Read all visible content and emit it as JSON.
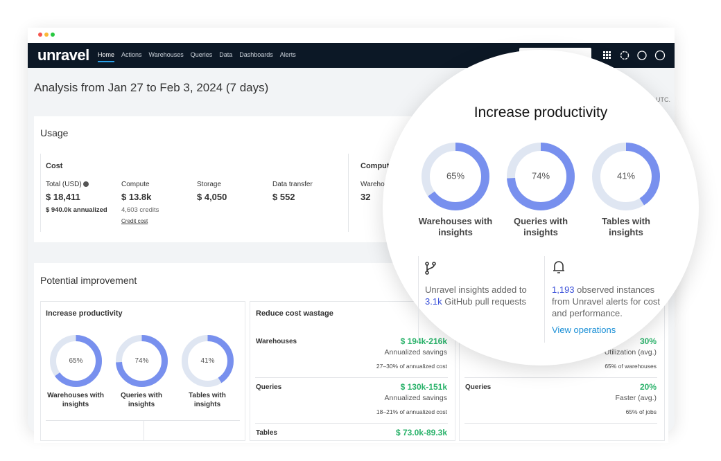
{
  "nav": {
    "logo": "unravel",
    "items": [
      "Home",
      "Actions",
      "Warehouses",
      "Queries",
      "Data",
      "Dashboards",
      "Alerts"
    ]
  },
  "header": {
    "title": "Analysis from Jan 27 to Feb 3, 2024 (7 days)",
    "timezone": "UTC."
  },
  "usage": {
    "title": "Usage",
    "cost": {
      "title": "Cost",
      "total_label": "Total (USD)",
      "total": "$ 18,411",
      "annualized": "$ 940.0k annualized",
      "compute_label": "Compute",
      "compute": "$ 13.8k",
      "credits": "4,603 credits",
      "credit_link": "Credit cost",
      "storage_label": "Storage",
      "storage": "$ 4,050",
      "transfer_label": "Data transfer",
      "transfer": "$ 552"
    },
    "compute": {
      "title": "Compute",
      "warehouses_label": "Warehouses",
      "warehouses": 32
    }
  },
  "improvement": {
    "title": "Potential improvement",
    "productivity": {
      "title": "Increase productivity",
      "donuts": [
        {
          "value": 65,
          "value_label": "65%",
          "label": "Warehouses with insights"
        },
        {
          "value": 74,
          "value_label": "74%",
          "label": "Queries with insights"
        },
        {
          "value": 41,
          "value_label": "41%",
          "label": "Tables with insights"
        }
      ],
      "github": {
        "text_before": "Unravel insights added to",
        "count": "3.1k",
        "text_after": "GitHub pull requests"
      },
      "alerts": {
        "count": "1,193",
        "text": "observed instances from Unravel alerts for cost and performance.",
        "link": "View operations"
      }
    },
    "wastage": {
      "title": "Reduce cost wastage",
      "rows": [
        {
          "label": "Warehouses",
          "value": "$ 194k-216k",
          "sub": "Annualized savings",
          "note": "27–30% of annualized cost"
        },
        {
          "label": "Queries",
          "value": "$ 130k-151k",
          "sub": "Annualized savings",
          "note": "18–21% of annualized cost"
        },
        {
          "label": "Tables",
          "value": "$ 73.0k-89.3k"
        }
      ]
    },
    "performance": {
      "rows": [
        {
          "value": "30%",
          "sub": "Utilization (avg.)",
          "note": "65% of warehouses"
        },
        {
          "label": "Queries",
          "value": "20%",
          "sub": "Faster (avg.)",
          "note": "65% of jobs"
        }
      ]
    }
  }
}
